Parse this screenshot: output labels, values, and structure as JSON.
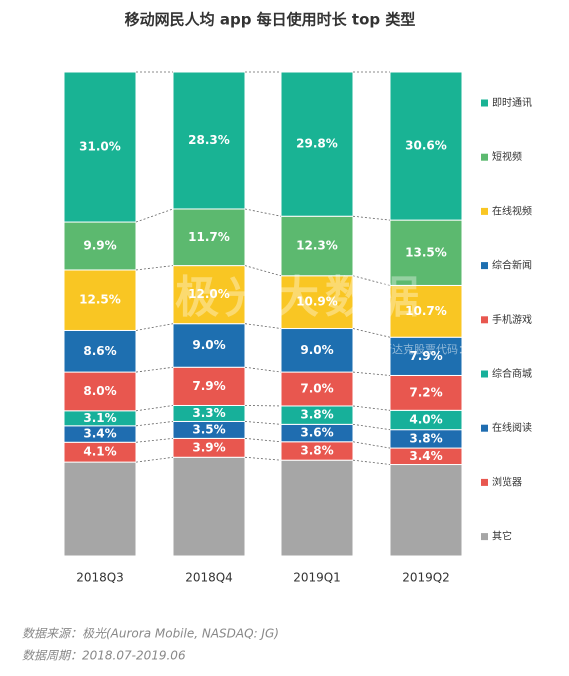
{
  "chart_data": {
    "type": "stacked_bar",
    "title": "移动网民人均 app 每日使用时长 top 类型",
    "categories": [
      "2018Q3",
      "2018Q4",
      "2019Q1",
      "2019Q2"
    ],
    "ylim": [
      0,
      100
    ],
    "series": [
      {
        "name": "即时通讯",
        "color": "#19b394",
        "values": [
          31.0,
          28.3,
          29.8,
          30.6
        ],
        "value_labels": [
          "31.0%",
          "28.3%",
          "29.8%",
          "30.6%"
        ]
      },
      {
        "name": "短视频",
        "color": "#5cb96f",
        "values": [
          9.9,
          11.7,
          12.3,
          13.5
        ],
        "value_labels": [
          "9.9%",
          "11.7%",
          "12.3%",
          "13.5%"
        ]
      },
      {
        "name": "在线视频",
        "color": "#f9c623",
        "values": [
          12.5,
          12.0,
          10.9,
          10.7
        ],
        "value_labels": [
          "12.5%",
          "12.0%",
          "10.9%",
          "10.7%"
        ]
      },
      {
        "name": "综合新闻",
        "color": "#1e6fb0",
        "values": [
          8.6,
          9.0,
          9.0,
          7.9
        ],
        "value_labels": [
          "8.6%",
          "9.0%",
          "9.0%",
          "7.9%"
        ]
      },
      {
        "name": "手机游戏",
        "color": "#e8574f",
        "values": [
          8.0,
          7.9,
          7.0,
          7.2
        ],
        "value_labels": [
          "8.0%",
          "7.9%",
          "7.0%",
          "7.2%"
        ]
      },
      {
        "name": "综合商城",
        "color": "#17b09a",
        "values": [
          3.1,
          3.3,
          3.8,
          4.0
        ],
        "value_labels": [
          "3.1%",
          "3.3%",
          "3.8%",
          "4.0%"
        ]
      },
      {
        "name": "在线阅读",
        "color": "#1f6db0",
        "values": [
          3.4,
          3.5,
          3.6,
          3.8
        ],
        "value_labels": [
          "3.4%",
          "3.5%",
          "3.6%",
          "3.8%"
        ]
      },
      {
        "name": "浏览器",
        "color": "#e8574f",
        "values": [
          4.1,
          3.9,
          3.8,
          3.4
        ],
        "value_labels": [
          "4.1%",
          "3.9%",
          "3.8%",
          "3.4%"
        ]
      },
      {
        "name": "其它",
        "color": "#a6a6a6",
        "values": [
          19.4,
          20.4,
          19.8,
          18.9
        ]
      }
    ],
    "watermark": "极光大数据",
    "watermark_sub": "纳斯达克股票代码：JG",
    "source": "数据来源：极光(Aurora Mobile, NASDAQ: JG)",
    "period": "数据周期：2018.07-2019.06"
  }
}
